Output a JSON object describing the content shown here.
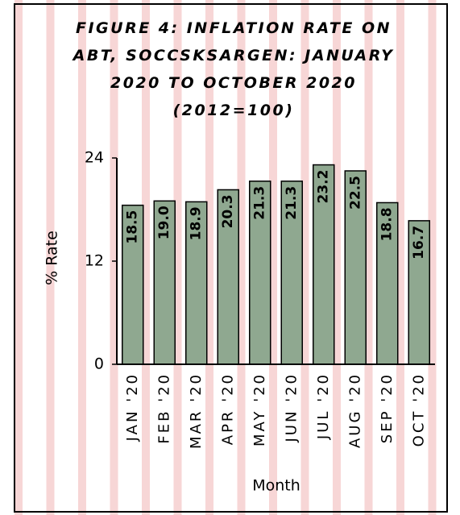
{
  "chart_data": {
    "type": "bar",
    "title": "FIGURE 4: INFLATION RATE ON ABT, SOCCSKSARGEN: JANUARY 2020 TO OCTOBER 2020 (2012=100)",
    "x_label": "Month",
    "y_label": "% Rate",
    "categories": [
      "JAN '20",
      "FEB '20",
      "MAR '20",
      "APR '20",
      "MAY '20",
      "JUN '20",
      "JUL '20",
      "AUG '20",
      "SEP '20",
      "OCT '20"
    ],
    "values": [
      18.5,
      19.0,
      18.9,
      20.3,
      21.3,
      21.3,
      23.2,
      22.5,
      18.8,
      16.7
    ],
    "value_labels": [
      "18.5",
      "19.0",
      "18.9",
      "20.3",
      "21.3",
      "21.3",
      "23.2",
      "22.5",
      "18.8",
      "16.7"
    ],
    "color": "#8fa890",
    "ylim": [
      0,
      24
    ],
    "yticks": [
      0,
      12,
      24
    ],
    "grid": false
  }
}
